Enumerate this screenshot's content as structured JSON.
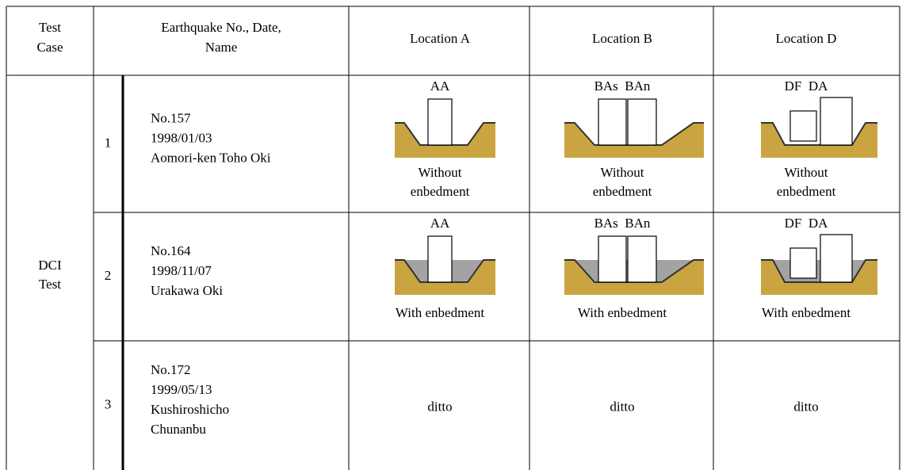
{
  "table": {
    "header": {
      "case": [
        "Test",
        "Case"
      ],
      "earthquake": [
        "Earthquake No., Date,",
        "Name"
      ],
      "locations": [
        "Location A",
        "Location B",
        "Location D"
      ]
    },
    "group_label": [
      "DCI",
      "Test"
    ],
    "rows": [
      {
        "number": "1",
        "lines": [
          "No.157",
          "1998/01/03",
          "Aomori-ken Toho Oki"
        ],
        "locations": [
          {
            "label": "AA",
            "caption": [
              "Without",
              "enbedment"
            ]
          },
          {
            "label": "BAs  BAn",
            "caption": [
              "Without",
              "enbedment"
            ]
          },
          {
            "label": "DF  DA",
            "caption": [
              "Without",
              "enbedment"
            ]
          }
        ]
      },
      {
        "number": "2",
        "lines": [
          "No.164",
          "1998/11/07",
          "Urakawa Oki"
        ],
        "locations": [
          {
            "label": "AA",
            "caption": [
              "With enbedment"
            ]
          },
          {
            "label": "BAs  BAn",
            "caption": [
              "With enbedment"
            ]
          },
          {
            "label": "DF  DA",
            "caption": [
              "With enbedment"
            ]
          }
        ]
      },
      {
        "number": "3",
        "lines": [
          "No.172",
          "1999/05/13",
          "Kushiroshicho",
          "Chunanbu"
        ],
        "locations": [
          {
            "text": "ditto"
          },
          {
            "text": "ditto"
          },
          {
            "text": "ditto"
          }
        ]
      }
    ]
  }
}
